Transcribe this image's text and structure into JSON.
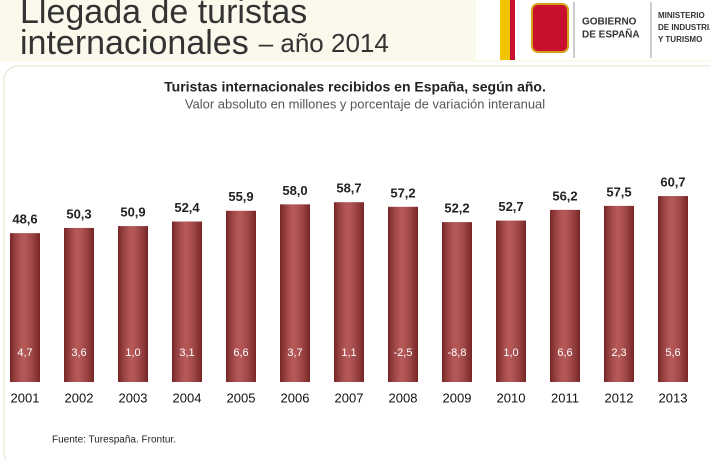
{
  "header": {
    "title_line1": "Llegada de turistas",
    "title_line2": "internacionales",
    "title_suffix": "– año 2014",
    "logo_left": [
      "GOBIERNO",
      "DE ESPAÑA"
    ],
    "logo_right": [
      "MINISTERIO",
      "DE INDUSTRIA",
      "Y TURISMO"
    ]
  },
  "chart_data": {
    "type": "bar",
    "title": "Turistas internacionales recibidos en España, según año.",
    "subtitle": "Valor absoluto en millones y porcentaje de variación interanual",
    "categories": [
      "2001",
      "2002",
      "2003",
      "2004",
      "2005",
      "2006",
      "2007",
      "2008",
      "2009",
      "2010",
      "2011",
      "2012",
      "2013"
    ],
    "values": [
      48.6,
      50.3,
      50.9,
      52.4,
      55.9,
      58.0,
      58.7,
      57.2,
      52.2,
      52.7,
      56.2,
      57.5,
      60.7
    ],
    "value_labels": [
      "48,6",
      "50,3",
      "50,9",
      "52,4",
      "55,9",
      "58,0",
      "58,7",
      "57,2",
      "52,2",
      "52,7",
      "56,2",
      "57,5",
      "60,7"
    ],
    "variation": [
      4.7,
      3.6,
      1.0,
      3.1,
      6.6,
      3.7,
      1.1,
      -2.5,
      -8.8,
      1.0,
      6.6,
      2.3,
      5.6
    ],
    "variation_labels": [
      "4,7",
      "3,6",
      "1,0",
      "3,1",
      "6,6",
      "3,7",
      "1,1",
      "-2,5",
      "-8,8",
      "1,0",
      "6,6",
      "2,3",
      "5,6"
    ],
    "color": "#a83434",
    "ylim": [
      0,
      80
    ],
    "source": "Fuente: Turespaña. Frontur."
  }
}
